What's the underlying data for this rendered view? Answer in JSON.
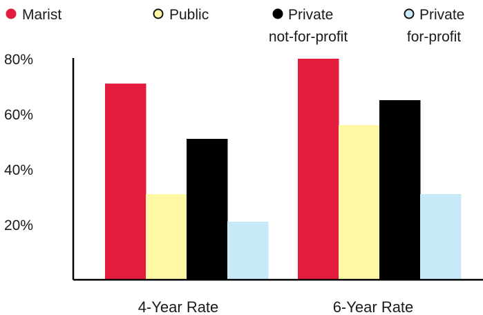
{
  "chart_data": {
    "type": "bar",
    "categories": [
      "4-Year Rate",
      "6-Year Rate"
    ],
    "series": [
      {
        "name": "Marist",
        "label_lines": [
          "Marist"
        ],
        "values": [
          71,
          80
        ],
        "color": "#e31c3d",
        "marker_outline": "#e31c3d"
      },
      {
        "name": "Public",
        "label_lines": [
          "Public"
        ],
        "values": [
          31,
          56
        ],
        "color": "#fef7a6",
        "marker_outline": "#111111"
      },
      {
        "name": "Private not-for-profit",
        "label_lines": [
          "Private",
          "not-for-profit"
        ],
        "values": [
          51,
          65
        ],
        "color": "#000000",
        "marker_outline": "#000000"
      },
      {
        "name": "Private for-profit",
        "label_lines": [
          "Private",
          "for-profit"
        ],
        "values": [
          21,
          31
        ],
        "color": "#c8e9f8",
        "marker_outline": "#111111"
      }
    ],
    "y_ticks": [
      "20%",
      "40%",
      "60%",
      "80%"
    ],
    "y_tick_values": [
      20,
      40,
      60,
      80
    ],
    "ylim": [
      0,
      80
    ],
    "grid": false,
    "legend_position": "top"
  }
}
